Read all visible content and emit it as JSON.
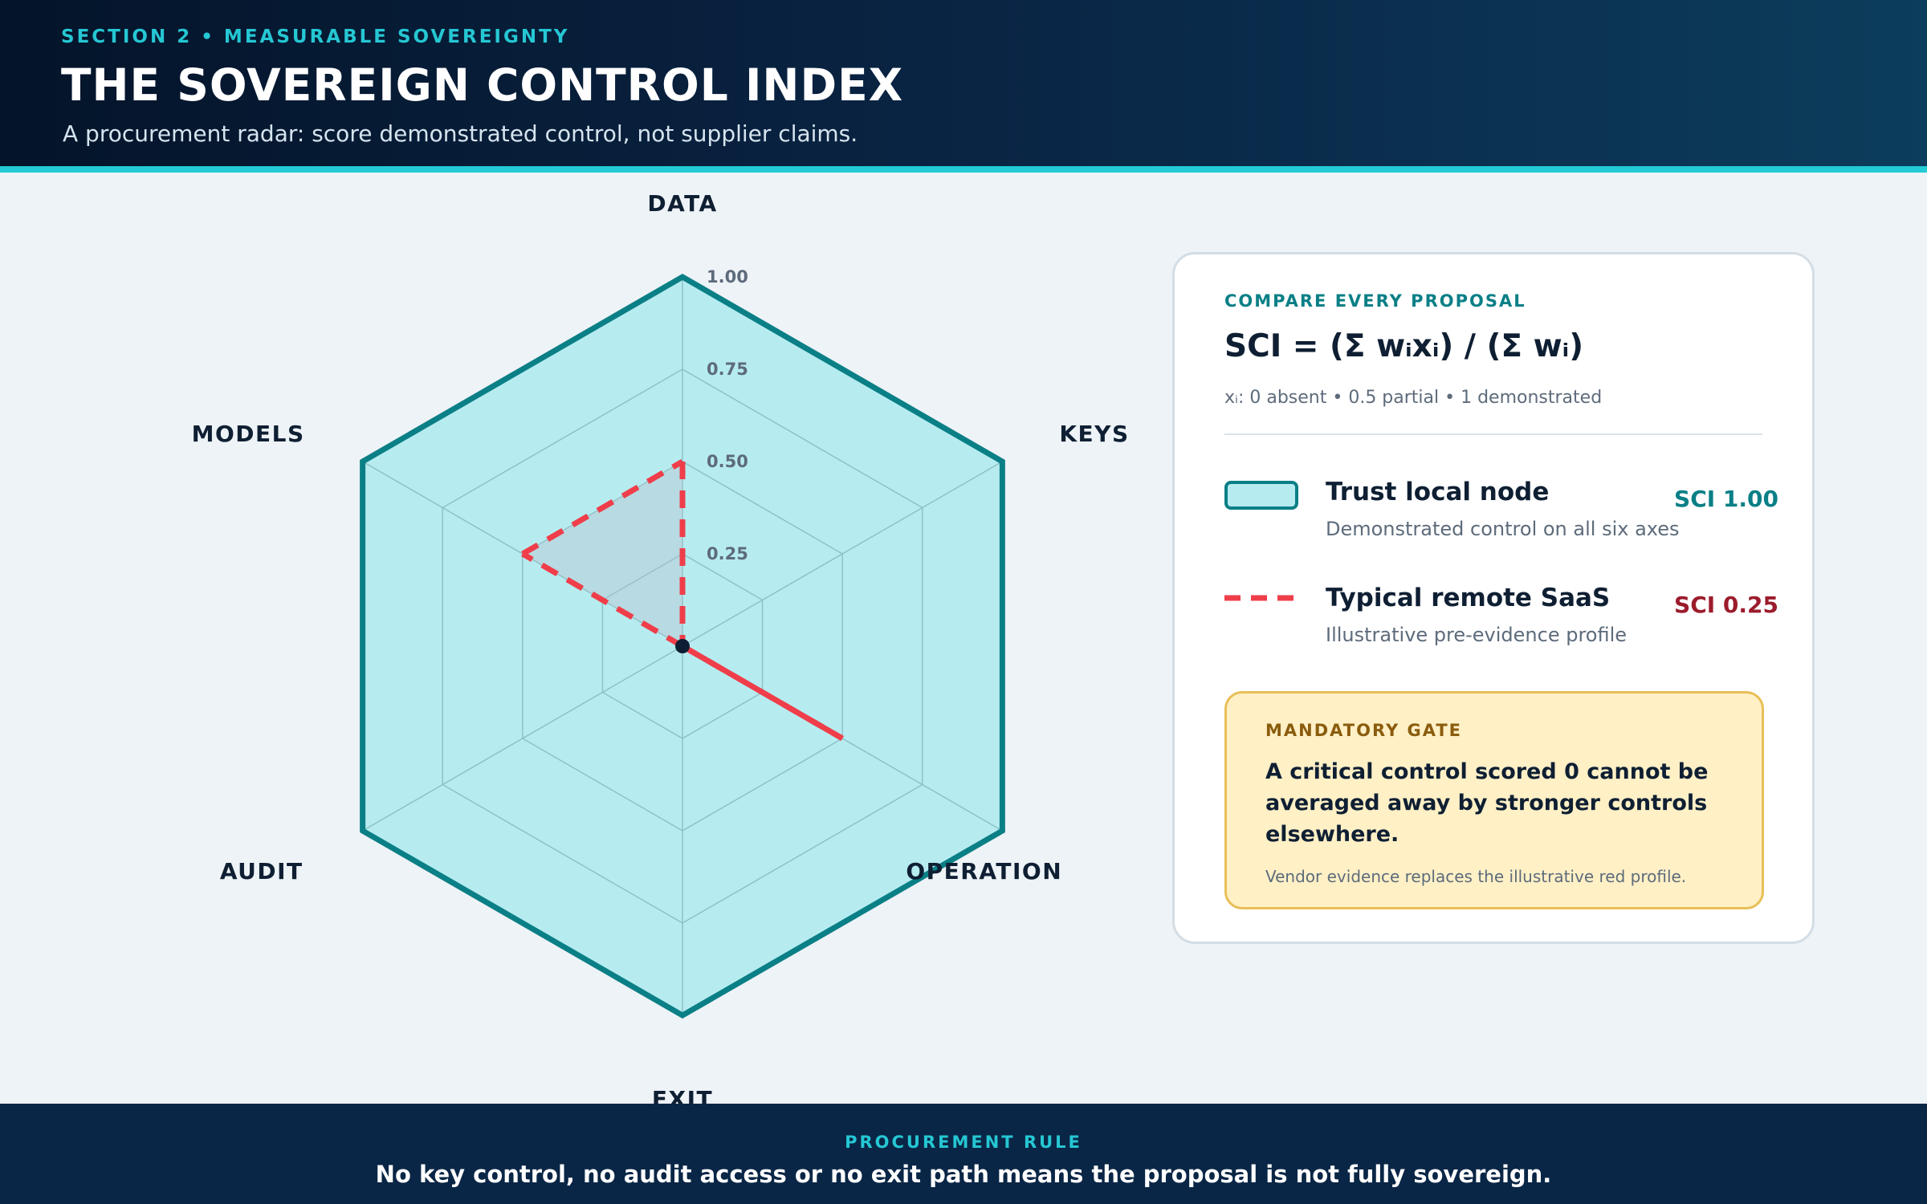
{
  "header": {
    "eyebrow": "SECTION 2 • MEASURABLE SOVEREIGNTY",
    "title": "THE SOVEREIGN CONTROL INDEX",
    "subtitle": "A procurement radar: score demonstrated control, not supplier claims."
  },
  "chart_data": {
    "type": "radar",
    "axes": [
      "DATA",
      "KEYS",
      "OPERATION",
      "EXIT",
      "AUDIT",
      "MODELS"
    ],
    "range": [
      0,
      1
    ],
    "rings": [
      0.25,
      0.5,
      0.75,
      1.0
    ],
    "ring_labels": [
      "0.25",
      "0.50",
      "0.75",
      "1.00"
    ],
    "series": [
      {
        "name": "Trust local node",
        "values": [
          1,
          1,
          1,
          1,
          1,
          1
        ],
        "color": "#0a7f86",
        "fill": "#b6ecf0",
        "style": "solid"
      },
      {
        "name": "Typical remote SaaS",
        "values": [
          0.5,
          0,
          0.5,
          0,
          0,
          0.5
        ],
        "color": "#ef3e4a",
        "style": "dashed"
      }
    ]
  },
  "panel": {
    "eyebrow": "COMPARE EVERY PROPOSAL",
    "formula": "SCI = (Σ wᵢxᵢ) / (Σ wᵢ)",
    "scale_note": "xᵢ: 0 absent • 0.5 partial • 1 demonstrated",
    "legend": [
      {
        "name": "Trust local node",
        "desc": "Demonstrated control on all six axes",
        "score": "SCI 1.00"
      },
      {
        "name": "Typical remote SaaS",
        "desc": "Illustrative pre-evidence profile",
        "score": "SCI 0.25"
      }
    ],
    "gate": {
      "eyebrow": "MANDATORY GATE",
      "body": "A critical control scored 0 cannot be averaged away by stronger controls elsewhere.",
      "note": "Vendor evidence replaces the illustrative red profile."
    }
  },
  "footer": {
    "eyebrow": "PROCUREMENT RULE",
    "text": "No key control, no audit access or no exit path means the proposal is not fully sovereign."
  }
}
